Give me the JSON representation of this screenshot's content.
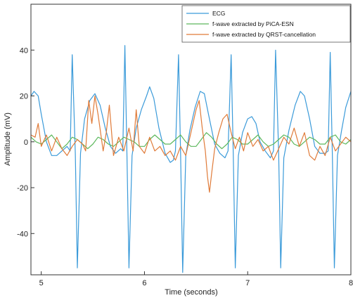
{
  "chart_data": {
    "type": "line",
    "xlabel": "Time (seconds)",
    "ylabel": "Amplitude (mV)",
    "xlim": [
      4.9,
      8.0
    ],
    "ylim": [
      -58,
      60
    ],
    "xticks": [
      5,
      6,
      7,
      8
    ],
    "yticks": [
      -40,
      -20,
      0,
      20,
      40
    ],
    "grid": false,
    "legend_position": "top-right",
    "series": [
      {
        "name": "ECG",
        "color": "#3a9ad9",
        "points": [
          [
            4.9,
            20
          ],
          [
            4.93,
            22
          ],
          [
            4.97,
            20
          ],
          [
            5.0,
            12
          ],
          [
            5.05,
            0
          ],
          [
            5.1,
            -6
          ],
          [
            5.15,
            -6
          ],
          [
            5.2,
            -4
          ],
          [
            5.25,
            -2
          ],
          [
            5.28,
            -4
          ],
          [
            5.3,
            38
          ],
          [
            5.33,
            -5
          ],
          [
            5.35,
            -55
          ],
          [
            5.38,
            -5
          ],
          [
            5.42,
            10
          ],
          [
            5.47,
            18
          ],
          [
            5.52,
            21
          ],
          [
            5.57,
            16
          ],
          [
            5.62,
            6
          ],
          [
            5.67,
            -2
          ],
          [
            5.72,
            -5
          ],
          [
            5.77,
            -3
          ],
          [
            5.79,
            -4
          ],
          [
            5.81,
            42
          ],
          [
            5.83,
            -5
          ],
          [
            5.85,
            -55
          ],
          [
            5.88,
            -6
          ],
          [
            5.92,
            6
          ],
          [
            5.97,
            14
          ],
          [
            6.02,
            20
          ],
          [
            6.05,
            24
          ],
          [
            6.09,
            19
          ],
          [
            6.14,
            6
          ],
          [
            6.2,
            -5
          ],
          [
            6.25,
            -9
          ],
          [
            6.28,
            -8
          ],
          [
            6.3,
            -4
          ],
          [
            6.33,
            38
          ],
          [
            6.35,
            -5
          ],
          [
            6.37,
            -57
          ],
          [
            6.4,
            -6
          ],
          [
            6.44,
            5
          ],
          [
            6.49,
            15
          ],
          [
            6.54,
            22
          ],
          [
            6.58,
            21
          ],
          [
            6.62,
            12
          ],
          [
            6.68,
            -1
          ],
          [
            6.73,
            -5
          ],
          [
            6.78,
            -7
          ],
          [
            6.81,
            -4
          ],
          [
            6.84,
            38
          ],
          [
            6.86,
            -5
          ],
          [
            6.88,
            -55
          ],
          [
            6.91,
            -6
          ],
          [
            6.95,
            4
          ],
          [
            7.0,
            10
          ],
          [
            7.04,
            11
          ],
          [
            7.08,
            8
          ],
          [
            7.12,
            0
          ],
          [
            7.17,
            -4
          ],
          [
            7.22,
            -7
          ],
          [
            7.25,
            -4
          ],
          [
            7.27,
            40
          ],
          [
            7.3,
            -5
          ],
          [
            7.32,
            -55
          ],
          [
            7.35,
            -7
          ],
          [
            7.4,
            5
          ],
          [
            7.46,
            16
          ],
          [
            7.51,
            22
          ],
          [
            7.55,
            20
          ],
          [
            7.6,
            10
          ],
          [
            7.65,
            -2
          ],
          [
            7.7,
            -5
          ],
          [
            7.75,
            -5
          ],
          [
            7.78,
            -4
          ],
          [
            7.8,
            39
          ],
          [
            7.82,
            -5
          ],
          [
            7.84,
            -55
          ],
          [
            7.87,
            -6
          ],
          [
            7.91,
            5
          ],
          [
            7.95,
            15
          ],
          [
            8.0,
            22
          ]
        ]
      },
      {
        "name": "f-wave extracted by PiCA-ESN",
        "color": "#5cb85c",
        "points": [
          [
            4.9,
            2
          ],
          [
            4.95,
            0
          ],
          [
            5.0,
            -1
          ],
          [
            5.05,
            1
          ],
          [
            5.1,
            3
          ],
          [
            5.15,
            0
          ],
          [
            5.2,
            -3
          ],
          [
            5.25,
            -1
          ],
          [
            5.3,
            2
          ],
          [
            5.35,
            1
          ],
          [
            5.4,
            -1
          ],
          [
            5.45,
            -3
          ],
          [
            5.5,
            -1
          ],
          [
            5.55,
            2
          ],
          [
            5.6,
            1
          ],
          [
            5.65,
            -1
          ],
          [
            5.7,
            -2
          ],
          [
            5.75,
            0
          ],
          [
            5.8,
            2
          ],
          [
            5.85,
            1
          ],
          [
            5.9,
            0
          ],
          [
            5.95,
            -2
          ],
          [
            6.0,
            -2
          ],
          [
            6.05,
            1
          ],
          [
            6.1,
            3
          ],
          [
            6.15,
            1
          ],
          [
            6.2,
            -1
          ],
          [
            6.25,
            -1
          ],
          [
            6.3,
            1
          ],
          [
            6.35,
            3
          ],
          [
            6.4,
            0
          ],
          [
            6.45,
            -2
          ],
          [
            6.5,
            -2
          ],
          [
            6.55,
            1
          ],
          [
            6.6,
            4
          ],
          [
            6.65,
            2
          ],
          [
            6.7,
            -1
          ],
          [
            6.75,
            -3
          ],
          [
            6.8,
            -1
          ],
          [
            6.85,
            2
          ],
          [
            6.9,
            1
          ],
          [
            6.95,
            -1
          ],
          [
            7.0,
            -1
          ],
          [
            7.05,
            1
          ],
          [
            7.1,
            3
          ],
          [
            7.15,
            0
          ],
          [
            7.2,
            -2
          ],
          [
            7.25,
            -1
          ],
          [
            7.3,
            1
          ],
          [
            7.35,
            3
          ],
          [
            7.4,
            2
          ],
          [
            7.45,
            -1
          ],
          [
            7.5,
            -2
          ],
          [
            7.55,
            0
          ],
          [
            7.6,
            2
          ],
          [
            7.65,
            1
          ],
          [
            7.7,
            -1
          ],
          [
            7.75,
            -1
          ],
          [
            7.8,
            2
          ],
          [
            7.85,
            3
          ],
          [
            7.9,
            0
          ],
          [
            7.95,
            -1
          ],
          [
            8.0,
            1
          ]
        ]
      },
      {
        "name": "f-wave extracted by QRST-cancellation",
        "color": "#e07b39",
        "points": [
          [
            4.9,
            3
          ],
          [
            4.94,
            2
          ],
          [
            4.97,
            8
          ],
          [
            5.0,
            -2
          ],
          [
            5.05,
            3
          ],
          [
            5.1,
            -4
          ],
          [
            5.15,
            2
          ],
          [
            5.2,
            -3
          ],
          [
            5.25,
            -6
          ],
          [
            5.3,
            -2
          ],
          [
            5.35,
            1
          ],
          [
            5.4,
            -1
          ],
          [
            5.43,
            -4
          ],
          [
            5.46,
            18
          ],
          [
            5.49,
            8
          ],
          [
            5.52,
            20
          ],
          [
            5.55,
            12
          ],
          [
            5.6,
            -4
          ],
          [
            5.63,
            4
          ],
          [
            5.66,
            16
          ],
          [
            5.7,
            -6
          ],
          [
            5.75,
            2
          ],
          [
            5.8,
            -4
          ],
          [
            5.85,
            6
          ],
          [
            5.89,
            -4
          ],
          [
            5.92,
            14
          ],
          [
            5.95,
            -2
          ],
          [
            6.0,
            -5
          ],
          [
            6.05,
            2
          ],
          [
            6.1,
            -4
          ],
          [
            6.15,
            -2
          ],
          [
            6.2,
            -6
          ],
          [
            6.25,
            -4
          ],
          [
            6.3,
            -8
          ],
          [
            6.35,
            -2
          ],
          [
            6.4,
            -6
          ],
          [
            6.45,
            4
          ],
          [
            6.5,
            14
          ],
          [
            6.53,
            18
          ],
          [
            6.56,
            6
          ],
          [
            6.59,
            -4
          ],
          [
            6.61,
            -15
          ],
          [
            6.63,
            -22
          ],
          [
            6.65,
            -14
          ],
          [
            6.68,
            -3
          ],
          [
            6.72,
            4
          ],
          [
            6.76,
            10
          ],
          [
            6.8,
            12
          ],
          [
            6.84,
            4
          ],
          [
            6.88,
            -3
          ],
          [
            6.92,
            2
          ],
          [
            6.96,
            -4
          ],
          [
            7.0,
            4
          ],
          [
            7.05,
            -2
          ],
          [
            7.1,
            1
          ],
          [
            7.15,
            -4
          ],
          [
            7.2,
            -2
          ],
          [
            7.25,
            -8
          ],
          [
            7.3,
            -3
          ],
          [
            7.35,
            2
          ],
          [
            7.4,
            -1
          ],
          [
            7.45,
            6
          ],
          [
            7.5,
            -2
          ],
          [
            7.55,
            4
          ],
          [
            7.6,
            -6
          ],
          [
            7.65,
            -8
          ],
          [
            7.7,
            -2
          ],
          [
            7.75,
            -6
          ],
          [
            7.8,
            2
          ],
          [
            7.85,
            -4
          ],
          [
            7.9,
            -1
          ],
          [
            7.95,
            2
          ],
          [
            8.0,
            0
          ]
        ]
      }
    ]
  }
}
